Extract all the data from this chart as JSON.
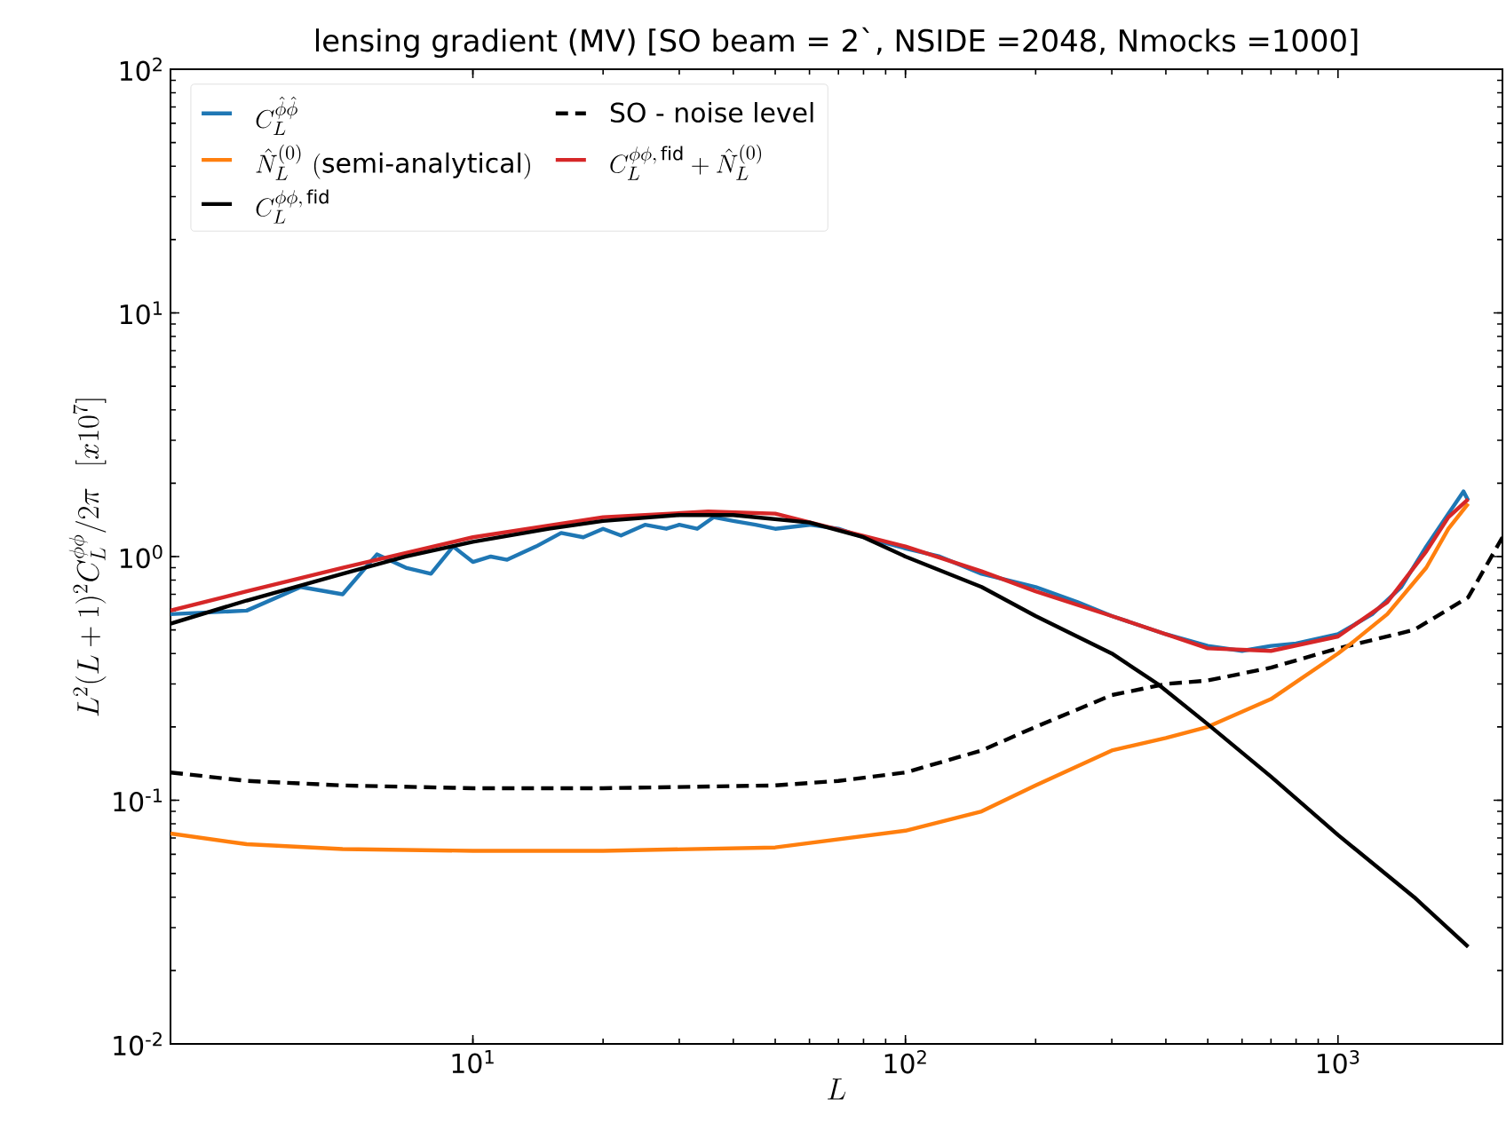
{
  "chart_data": {
    "type": "line",
    "title": "lensing gradient (MV)  [SO beam = 2`, NSIDE =2048, Nmocks =1000]",
    "xlabel": "L",
    "ylabel": "L^2(L+1)^2C_L^{\\phi\\phi}/2\\pi\\ \\ [x10^7]",
    "log": "xy",
    "xlim": [
      2,
      2400
    ],
    "ylim": [
      0.01,
      100
    ],
    "xticks": [
      {
        "value": 10,
        "label": "10$^{1}$"
      },
      {
        "value": 100,
        "label": "10$^{2}$"
      },
      {
        "value": 1000,
        "label": "10$^{3}$"
      }
    ],
    "yticks": [
      {
        "value": 0.01,
        "label": "10$^{-2}$"
      },
      {
        "value": 0.1,
        "label": "10$^{-1}$"
      },
      {
        "value": 1,
        "label": "10$^{0}$"
      },
      {
        "value": 10,
        "label": "10$^{1}$"
      },
      {
        "value": 100,
        "label": "10$^{2}$"
      }
    ],
    "legend": "top left",
    "series": [
      {
        "name": "C_L^{\\hat\\phi\\hat\\phi}",
        "color": "#1f77b4",
        "x": [
          2,
          3,
          4,
          5,
          6,
          7,
          8,
          9,
          10,
          11,
          12,
          14,
          16,
          18,
          20,
          22,
          25,
          28,
          30,
          33,
          36,
          40,
          45,
          50,
          60,
          70,
          80,
          100,
          120,
          150,
          200,
          250,
          300,
          400,
          500,
          600,
          700,
          800,
          1000,
          1200,
          1400,
          1600,
          1800,
          1950,
          2000
        ],
        "values": [
          0.58,
          0.6,
          0.75,
          0.7,
          1.02,
          0.9,
          0.85,
          1.1,
          0.95,
          1.0,
          0.97,
          1.1,
          1.25,
          1.2,
          1.3,
          1.22,
          1.35,
          1.3,
          1.35,
          1.3,
          1.45,
          1.4,
          1.35,
          1.3,
          1.35,
          1.3,
          1.2,
          1.08,
          1.0,
          0.85,
          0.75,
          0.65,
          0.57,
          0.48,
          0.43,
          0.41,
          0.43,
          0.44,
          0.48,
          0.58,
          0.75,
          1.1,
          1.5,
          1.85,
          1.7
        ]
      },
      {
        "name": "\\mathrm{SO\\ \\mbox{-}\\ noise\\ level}",
        "color": "#000000",
        "line_style": "dashed",
        "x": [
          2,
          3,
          5,
          10,
          20,
          50,
          70,
          100,
          150,
          200,
          300,
          400,
          500,
          700,
          1000,
          1500,
          2000,
          2400
        ],
        "values": [
          0.13,
          0.12,
          0.115,
          0.112,
          0.112,
          0.115,
          0.12,
          0.13,
          0.16,
          0.2,
          0.27,
          0.3,
          0.31,
          0.35,
          0.42,
          0.5,
          0.68,
          1.2
        ]
      },
      {
        "name": "\\hat{N}_L^{(0)}\\ \\mathrm{(semi\\mbox{-}analytical)}",
        "color": "#ff7f0e",
        "x": [
          2,
          3,
          5,
          10,
          20,
          50,
          100,
          150,
          200,
          300,
          400,
          500,
          700,
          1000,
          1090,
          1300,
          1600,
          1800,
          2000
        ],
        "values": [
          0.073,
          0.066,
          0.063,
          0.062,
          0.062,
          0.064,
          0.075,
          0.09,
          0.115,
          0.16,
          0.18,
          0.2,
          0.26,
          0.4,
          0.45,
          0.58,
          0.9,
          1.3,
          1.65
        ]
      },
      {
        "name": "C_L^{\\phi\\phi,\\,\\mathrm{fid}}+\\hat{N}_L^{(0)}",
        "color": "#d62728",
        "x": [
          2,
          3,
          5,
          10,
          20,
          35,
          50,
          100,
          150,
          200,
          300,
          500,
          700,
          1000,
          1300,
          1600,
          1800,
          2000
        ],
        "values": [
          0.6,
          0.72,
          0.9,
          1.2,
          1.45,
          1.53,
          1.5,
          1.1,
          0.87,
          0.72,
          0.57,
          0.42,
          0.41,
          0.47,
          0.65,
          1.05,
          1.45,
          1.72
        ]
      },
      {
        "name": "C_L^{\\phi\\phi,\\,\\mathrm{fid}}",
        "color": "#000000",
        "x": [
          2,
          3,
          5,
          7,
          10,
          15,
          20,
          30,
          40,
          60,
          80,
          100,
          150,
          200,
          300,
          383,
          500,
          700,
          1000,
          1500,
          2000
        ],
        "values": [
          0.53,
          0.66,
          0.85,
          1.0,
          1.15,
          1.3,
          1.4,
          1.48,
          1.48,
          1.38,
          1.2,
          1.0,
          0.75,
          0.57,
          0.4,
          0.3,
          0.205,
          0.125,
          0.072,
          0.04,
          0.025
        ]
      }
    ]
  }
}
